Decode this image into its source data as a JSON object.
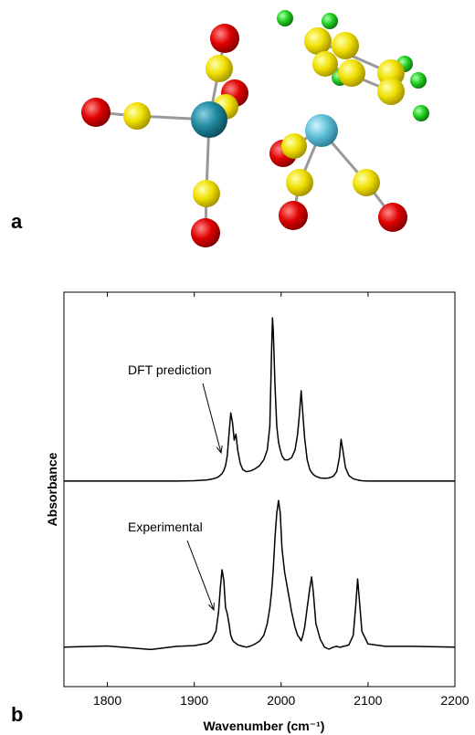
{
  "panel_a_label": "a",
  "panel_b_label": "b",
  "chart_data": {
    "type": "line",
    "xlabel": "Wavenumber (cm⁻¹)",
    "ylabel": "Absorbance",
    "xlim": [
      1750,
      2200
    ],
    "xticks": [
      1800,
      1900,
      2000,
      2100,
      2200
    ],
    "ylim": [
      0,
      1
    ],
    "x": [
      1750,
      1800,
      1850,
      1880,
      1900,
      1915,
      1920,
      1925,
      1928,
      1930,
      1932,
      1934,
      1936,
      1938,
      1940,
      1942,
      1944,
      1946,
      1948,
      1950,
      1953,
      1956,
      1960,
      1965,
      1970,
      1975,
      1980,
      1984,
      1987,
      1989,
      1990,
      1991,
      1993,
      1995,
      1997,
      1999,
      2001,
      2004,
      2008,
      2012,
      2016,
      2019,
      2021,
      2023,
      2025,
      2027,
      2030,
      2033,
      2035,
      2037,
      2040,
      2045,
      2050,
      2055,
      2060,
      2064,
      2067,
      2069,
      2071,
      2074,
      2078,
      2083,
      2086,
      2088,
      2090,
      2093,
      2100,
      2120,
      2150,
      2200
    ],
    "series": [
      {
        "name": "DFT prediction",
        "color": "#000000",
        "values": [
          0.521,
          0.521,
          0.521,
          0.521,
          0.522,
          0.524,
          0.526,
          0.529,
          0.532,
          0.536,
          0.54,
          0.548,
          0.56,
          0.585,
          0.64,
          0.694,
          0.67,
          0.625,
          0.64,
          0.6,
          0.565,
          0.55,
          0.545,
          0.547,
          0.552,
          0.56,
          0.575,
          0.6,
          0.66,
          0.85,
          0.935,
          0.9,
          0.76,
          0.66,
          0.62,
          0.6,
          0.585,
          0.575,
          0.575,
          0.58,
          0.6,
          0.64,
          0.69,
          0.75,
          0.69,
          0.63,
          0.575,
          0.55,
          0.543,
          0.538,
          0.533,
          0.529,
          0.528,
          0.529,
          0.533,
          0.545,
          0.58,
          0.627,
          0.6,
          0.555,
          0.535,
          0.527,
          0.525,
          0.524,
          0.523,
          0.522,
          0.521,
          0.521,
          0.521,
          0.521
        ]
      },
      {
        "name": "Experimental",
        "color": "#000000",
        "values": [
          0.1,
          0.103,
          0.094,
          0.102,
          0.104,
          0.11,
          0.118,
          0.14,
          0.19,
          0.25,
          0.296,
          0.27,
          0.2,
          0.185,
          0.16,
          0.13,
          0.118,
          0.113,
          0.11,
          0.106,
          0.104,
          0.102,
          0.1,
          0.103,
          0.108,
          0.115,
          0.13,
          0.16,
          0.2,
          0.24,
          0.27,
          0.3,
          0.38,
          0.44,
          0.472,
          0.44,
          0.35,
          0.29,
          0.24,
          0.19,
          0.15,
          0.13,
          0.124,
          0.116,
          0.13,
          0.15,
          0.2,
          0.25,
          0.278,
          0.24,
          0.16,
          0.12,
          0.1,
          0.095,
          0.1,
          0.102,
          0.1,
          0.1,
          0.102,
          0.103,
          0.106,
          0.13,
          0.21,
          0.273,
          0.22,
          0.14,
          0.108,
          0.102,
          0.102,
          0.1
        ]
      }
    ]
  }
}
